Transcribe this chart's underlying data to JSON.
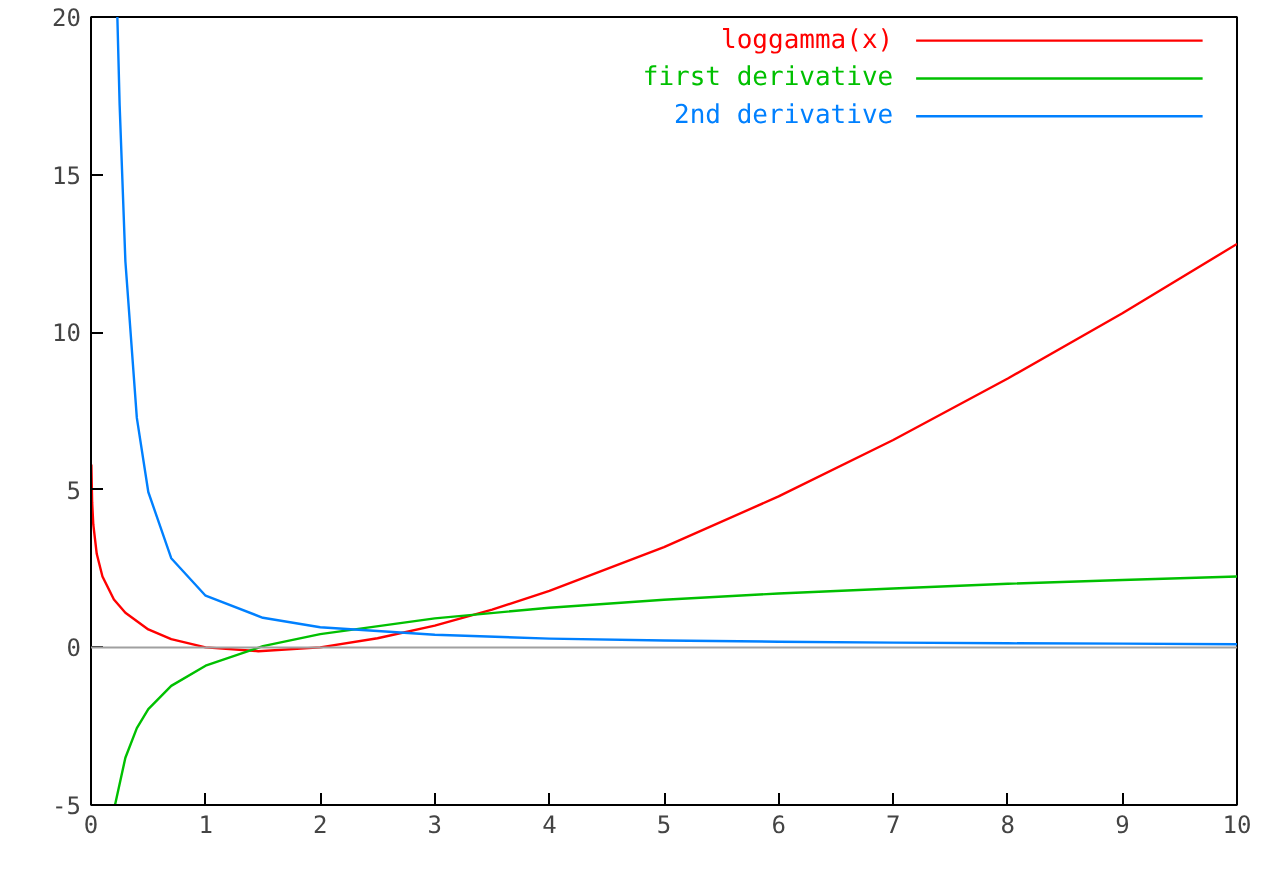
{
  "chart_data": {
    "type": "line",
    "xlim": [
      0,
      10
    ],
    "ylim": [
      -5,
      20
    ],
    "xticks": [
      0,
      1,
      2,
      3,
      4,
      5,
      6,
      7,
      8,
      9,
      10
    ],
    "yticks": [
      -5,
      0,
      5,
      10,
      15,
      20
    ],
    "grid": false,
    "legend": "top right",
    "ref_lines": [
      {
        "axis": "y",
        "value": 0,
        "color": "#a0a0a0"
      }
    ],
    "series": [
      {
        "name": "loggamma(x)",
        "color": "#ff0000",
        "x": [
          0.003,
          0.01,
          0.02,
          0.05,
          0.1,
          0.2,
          0.3,
          0.5,
          0.7,
          1,
          1.46,
          2,
          2.5,
          3,
          3.5,
          4,
          5,
          6,
          7,
          8,
          9,
          10
        ],
        "values": [
          5.8,
          4.6,
          3.9,
          2.97,
          2.25,
          1.52,
          1.1,
          0.57,
          0.26,
          0,
          -0.12,
          0,
          0.29,
          0.69,
          1.2,
          1.79,
          3.18,
          4.79,
          6.58,
          8.53,
          10.6,
          12.8
        ]
      },
      {
        "name": "first derivative",
        "color": "#00c000",
        "x": [
          0.21,
          0.3,
          0.4,
          0.5,
          0.7,
          1,
          1.5,
          2,
          3,
          4,
          5,
          6,
          7,
          8,
          9,
          10
        ],
        "values": [
          -4.99,
          -3.5,
          -2.56,
          -1.96,
          -1.22,
          -0.58,
          0.04,
          0.42,
          0.92,
          1.26,
          1.51,
          1.71,
          1.87,
          2.02,
          2.14,
          2.25
        ]
      },
      {
        "name": "2nd derivative",
        "color": "#0080ff",
        "x": [
          0.23,
          0.25,
          0.3,
          0.4,
          0.5,
          0.7,
          1,
          1.5,
          2,
          3,
          4,
          5,
          6,
          7,
          8,
          9,
          10
        ],
        "values": [
          20.0,
          17.2,
          12.25,
          7.28,
          4.93,
          2.83,
          1.64,
          0.94,
          0.64,
          0.4,
          0.28,
          0.22,
          0.18,
          0.15,
          0.13,
          0.12,
          0.1
        ]
      }
    ]
  }
}
